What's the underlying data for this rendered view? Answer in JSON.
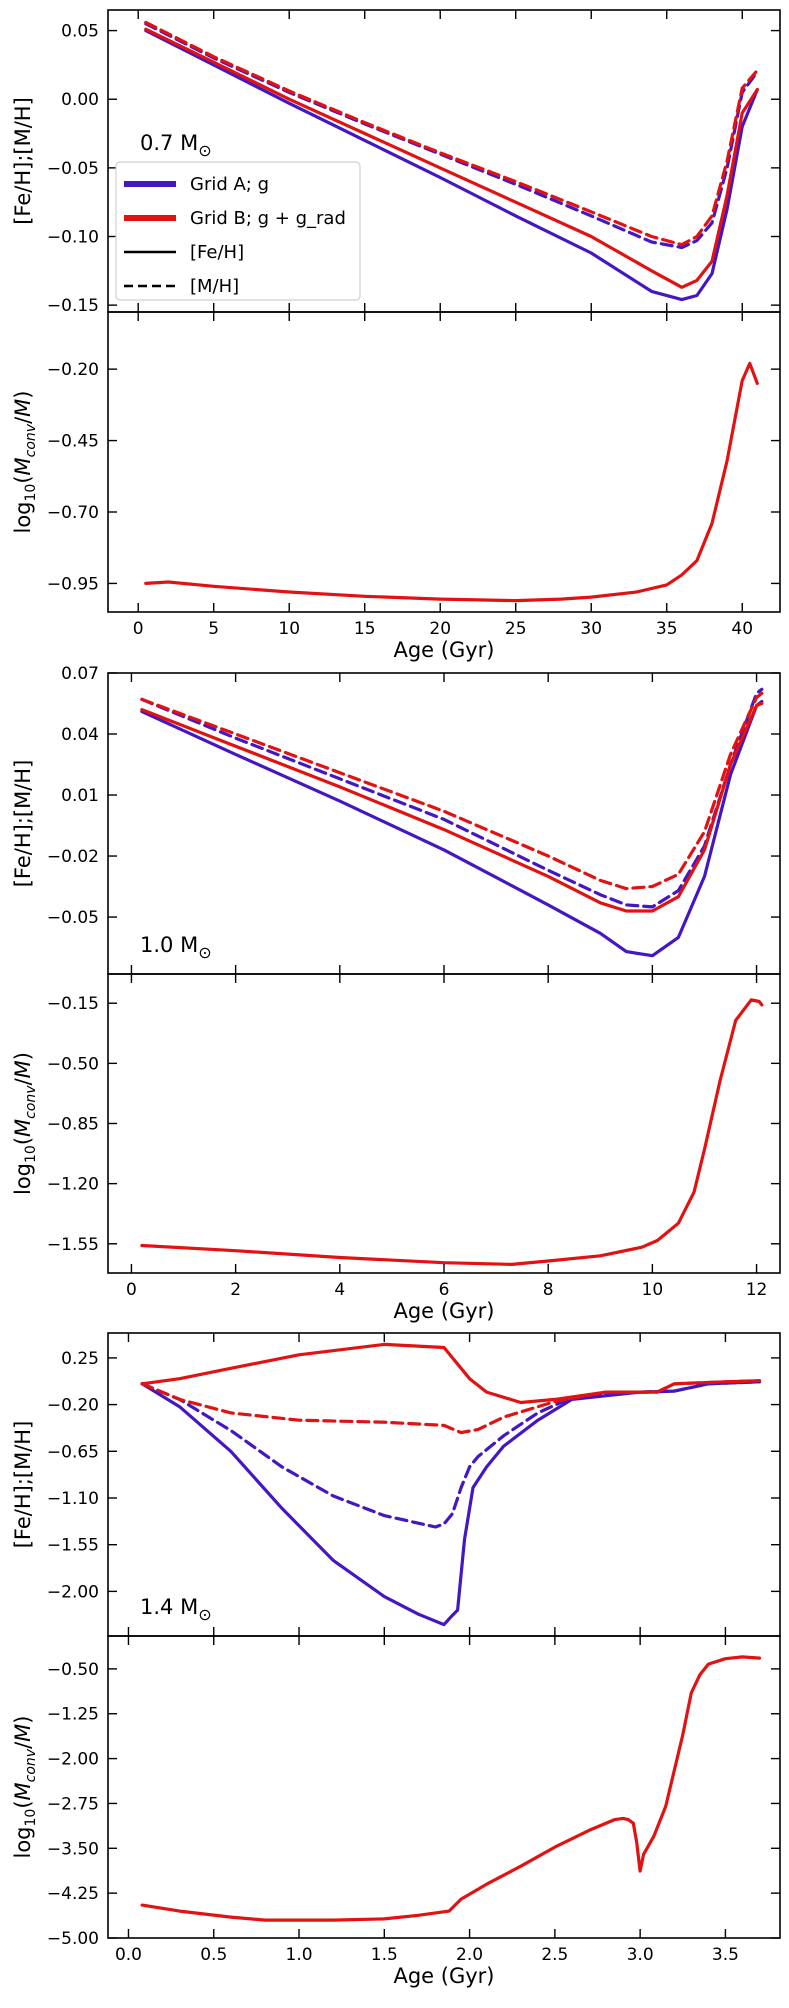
{
  "figure": {
    "colors": {
      "grid_a": "#4417c4",
      "grid_b": "#e21212",
      "legend_black": "#000000"
    }
  },
  "chart_data": [
    {
      "type": "line",
      "id": "p07_top",
      "mass_label": "0.7 M",
      "mass_symbol": "⊙",
      "ylabel": "[Fe/H];[M/H]",
      "xlabel": "",
      "xlim": [
        -2,
        42.5
      ],
      "ylim": [
        -0.155,
        0.065
      ],
      "yticks": [
        0.05,
        0.0,
        -0.05,
        -0.1,
        -0.15
      ],
      "ytick_labels": [
        "0.05",
        "0.00",
        "−0.05",
        "−0.10",
        "−0.15"
      ],
      "xticks": [
        0,
        5,
        10,
        15,
        20,
        25,
        30,
        35,
        40
      ],
      "legend": {
        "placement": "upper-left",
        "items": [
          {
            "label": "Grid A; g",
            "style": "grid_a"
          },
          {
            "label": "Grid B; g + g_rad",
            "style": "grid_b"
          },
          {
            "label": "[Fe/H]",
            "style": "solid"
          },
          {
            "label": "[M/H]",
            "style": "dashed"
          }
        ]
      },
      "series": [
        {
          "name": "Grid A [Fe/H]",
          "grid": "A",
          "dash": false,
          "x": [
            0.5,
            5,
            10,
            15,
            20,
            25,
            30,
            34,
            36,
            37,
            38,
            39,
            40,
            41
          ],
          "y": [
            0.05,
            0.025,
            -0.003,
            -0.03,
            -0.057,
            -0.085,
            -0.112,
            -0.14,
            -0.146,
            -0.143,
            -0.127,
            -0.08,
            -0.02,
            0.007
          ]
        },
        {
          "name": "Grid A [M/H]",
          "grid": "A",
          "dash": true,
          "x": [
            0.5,
            5,
            10,
            15,
            20,
            25,
            30,
            34,
            36,
            37,
            38,
            39,
            40,
            41
          ],
          "y": [
            0.055,
            0.03,
            0.005,
            -0.018,
            -0.04,
            -0.062,
            -0.085,
            -0.104,
            -0.108,
            -0.103,
            -0.09,
            -0.05,
            0.005,
            0.02
          ]
        },
        {
          "name": "Grid B [Fe/H]",
          "grid": "B",
          "dash": false,
          "x": [
            0.5,
            5,
            10,
            15,
            20,
            25,
            30,
            34,
            36,
            37,
            38,
            39,
            40,
            41
          ],
          "y": [
            0.051,
            0.027,
            0.0,
            -0.025,
            -0.05,
            -0.075,
            -0.1,
            -0.125,
            -0.137,
            -0.132,
            -0.118,
            -0.07,
            -0.01,
            0.007
          ]
        },
        {
          "name": "Grid B [M/H]",
          "grid": "B",
          "dash": true,
          "x": [
            0.5,
            5,
            10,
            15,
            20,
            25,
            30,
            34,
            36,
            37,
            38,
            39,
            40,
            41
          ],
          "y": [
            0.056,
            0.031,
            0.006,
            -0.017,
            -0.039,
            -0.06,
            -0.082,
            -0.1,
            -0.106,
            -0.1,
            -0.085,
            -0.045,
            0.008,
            0.021
          ]
        }
      ]
    },
    {
      "type": "line",
      "id": "p07_bottom",
      "ylabel": "log10(Mconv/M)",
      "xlabel": "Age (Gyr)",
      "xlim": [
        -2,
        42.5
      ],
      "ylim": [
        -1.05,
        0.0
      ],
      "yticks": [
        -0.2,
        -0.45,
        -0.7,
        -0.95
      ],
      "ytick_labels": [
        "−0.20",
        "−0.45",
        "−0.70",
        "−0.95"
      ],
      "xticks": [
        0,
        5,
        10,
        15,
        20,
        25,
        30,
        35,
        40
      ],
      "xtick_labels": [
        "0",
        "5",
        "10",
        "15",
        "20",
        "25",
        "30",
        "35",
        "40"
      ],
      "series": [
        {
          "name": "Grid B Mconv",
          "grid": "B",
          "dash": false,
          "x": [
            0.5,
            2,
            5,
            10,
            15,
            20,
            25,
            28,
            30,
            33,
            35,
            36,
            37,
            38,
            39,
            40,
            40.5,
            41
          ],
          "y": [
            -0.95,
            -0.945,
            -0.96,
            -0.98,
            -0.995,
            -1.005,
            -1.01,
            -1.005,
            -0.998,
            -0.98,
            -0.955,
            -0.92,
            -0.87,
            -0.74,
            -0.52,
            -0.24,
            -0.18,
            -0.25
          ]
        }
      ]
    },
    {
      "type": "line",
      "id": "p10_top",
      "mass_label": "1.0 M",
      "mass_symbol": "⊙",
      "ylabel": "[Fe/H];[M/H]",
      "xlabel": "",
      "xlim": [
        -0.45,
        12.45
      ],
      "ylim": [
        -0.078,
        0.07
      ],
      "yticks": [
        0.07,
        0.04,
        0.01,
        -0.02,
        -0.05
      ],
      "ytick_labels": [
        "0.07",
        "0.04",
        "0.01",
        "−0.02",
        "−0.05"
      ],
      "xticks": [
        0,
        2,
        4,
        6,
        8,
        10,
        12
      ],
      "series": [
        {
          "name": "Grid A [Fe/H]",
          "grid": "A",
          "dash": false,
          "x": [
            0.2,
            2,
            4,
            6,
            8,
            9,
            9.5,
            10,
            10.5,
            11,
            11.5,
            12,
            12.1
          ],
          "y": [
            0.051,
            0.03,
            0.007,
            -0.017,
            -0.044,
            -0.058,
            -0.067,
            -0.069,
            -0.06,
            -0.03,
            0.02,
            0.054,
            0.056
          ]
        },
        {
          "name": "Grid A [M/H]",
          "grid": "A",
          "dash": true,
          "x": [
            0.2,
            2,
            4,
            6,
            8,
            9,
            9.5,
            10,
            10.5,
            11,
            11.5,
            12,
            12.1
          ],
          "y": [
            0.057,
            0.038,
            0.018,
            -0.002,
            -0.027,
            -0.039,
            -0.044,
            -0.045,
            -0.037,
            -0.015,
            0.025,
            0.06,
            0.062
          ]
        },
        {
          "name": "Grid B [Fe/H]",
          "grid": "B",
          "dash": false,
          "x": [
            0.2,
            2,
            4,
            6,
            8,
            9,
            9.5,
            10,
            10.5,
            11,
            11.5,
            12,
            12.1
          ],
          "y": [
            0.052,
            0.034,
            0.014,
            -0.007,
            -0.03,
            -0.043,
            -0.047,
            -0.047,
            -0.04,
            -0.017,
            0.025,
            0.054,
            0.055
          ]
        },
        {
          "name": "Grid B [M/H]",
          "grid": "B",
          "dash": true,
          "x": [
            0.2,
            2,
            4,
            6,
            8,
            9,
            9.5,
            10,
            10.5,
            11,
            11.5,
            12,
            12.1
          ],
          "y": [
            0.057,
            0.04,
            0.021,
            0.002,
            -0.02,
            -0.032,
            -0.036,
            -0.035,
            -0.029,
            -0.008,
            0.03,
            0.058,
            0.06
          ]
        }
      ]
    },
    {
      "type": "line",
      "id": "p10_bottom",
      "ylabel": "log10(Mconv/M)",
      "xlabel": "Age (Gyr)",
      "xlim": [
        -0.45,
        12.45
      ],
      "ylim": [
        -1.72,
        0.02
      ],
      "yticks": [
        -0.15,
        -0.5,
        -0.85,
        -1.2,
        -1.55
      ],
      "ytick_labels": [
        "−0.15",
        "−0.50",
        "−0.85",
        "−1.20",
        "−1.55"
      ],
      "xticks": [
        0,
        2,
        4,
        6,
        8,
        10,
        12
      ],
      "xtick_labels": [
        "0",
        "2",
        "4",
        "6",
        "8",
        "10",
        "12"
      ],
      "series": [
        {
          "name": "Grid B Mconv",
          "grid": "B",
          "dash": false,
          "x": [
            0.2,
            2,
            4,
            6,
            7.3,
            8,
            9,
            9.8,
            10.1,
            10.5,
            10.8,
            11.0,
            11.3,
            11.6,
            11.9,
            12.05,
            12.1
          ],
          "y": [
            -1.56,
            -1.59,
            -1.63,
            -1.66,
            -1.67,
            -1.65,
            -1.62,
            -1.57,
            -1.53,
            -1.43,
            -1.25,
            -1.0,
            -0.6,
            -0.25,
            -0.13,
            -0.14,
            -0.16
          ]
        }
      ]
    },
    {
      "type": "line",
      "id": "p14_top",
      "mass_label": "1.4 M",
      "mass_symbol": "⊙",
      "ylabel": "[Fe/H];[M/H]",
      "xlabel": "",
      "xlim": [
        -0.12,
        3.82
      ],
      "ylim": [
        -2.43,
        0.49
      ],
      "yticks": [
        0.25,
        -0.2,
        -0.65,
        -1.1,
        -1.55,
        -2.0
      ],
      "ytick_labels": [
        "0.25",
        "−0.20",
        "−0.65",
        "−1.10",
        "−1.55",
        "−2.00"
      ],
      "xticks": [
        0.0,
        0.5,
        1.0,
        1.5,
        2.0,
        2.5,
        3.0,
        3.5
      ],
      "series": [
        {
          "name": "Grid A [Fe/H]",
          "grid": "A",
          "dash": false,
          "x": [
            0.08,
            0.3,
            0.6,
            0.9,
            1.2,
            1.5,
            1.7,
            1.85,
            1.9,
            1.93,
            1.97,
            2.02,
            2.1,
            2.2,
            2.4,
            2.6,
            3.0,
            3.2,
            3.4,
            3.7
          ],
          "y": [
            0.0,
            -0.22,
            -0.65,
            -1.2,
            -1.7,
            -2.05,
            -2.22,
            -2.32,
            -2.23,
            -2.18,
            -1.5,
            -1.0,
            -0.8,
            -0.6,
            -0.35,
            -0.15,
            -0.08,
            -0.07,
            0.0,
            0.02
          ]
        },
        {
          "name": "Grid A [M/H]",
          "grid": "A",
          "dash": true,
          "x": [
            0.08,
            0.3,
            0.6,
            0.9,
            1.2,
            1.5,
            1.8,
            1.85,
            1.9,
            1.95,
            2.0,
            2.05,
            2.2,
            2.4,
            2.6,
            3.0,
            3.2,
            3.4,
            3.7
          ],
          "y": [
            0.0,
            -0.15,
            -0.45,
            -0.8,
            -1.08,
            -1.27,
            -1.38,
            -1.35,
            -1.25,
            -1.0,
            -0.8,
            -0.7,
            -0.5,
            -0.28,
            -0.13,
            -0.08,
            -0.07,
            0.0,
            0.02
          ]
        },
        {
          "name": "Grid B [Fe/H]",
          "grid": "B",
          "dash": false,
          "x": [
            0.08,
            0.3,
            0.6,
            1.0,
            1.5,
            1.85,
            1.9,
            2.0,
            2.1,
            2.3,
            2.5,
            2.8,
            3.0,
            3.1,
            3.2,
            3.5,
            3.7
          ],
          "y": [
            0.0,
            0.05,
            0.15,
            0.28,
            0.38,
            0.35,
            0.25,
            0.05,
            -0.08,
            -0.18,
            -0.15,
            -0.08,
            -0.08,
            -0.08,
            0.0,
            0.02,
            0.03
          ]
        },
        {
          "name": "Grid B [M/H]",
          "grid": "B",
          "dash": true,
          "x": [
            0.08,
            0.3,
            0.6,
            1.0,
            1.5,
            1.85,
            1.95,
            2.05,
            2.2,
            2.5,
            2.8,
            3.0,
            3.1,
            3.2,
            3.5,
            3.7
          ],
          "y": [
            0.0,
            -0.15,
            -0.28,
            -0.35,
            -0.37,
            -0.4,
            -0.47,
            -0.44,
            -0.32,
            -0.17,
            -0.08,
            -0.08,
            -0.08,
            0.0,
            0.02,
            0.03
          ]
        }
      ]
    },
    {
      "type": "line",
      "id": "p14_bottom",
      "ylabel": "log10(Mconv/M)",
      "xlabel": "Age (Gyr)",
      "xlim": [
        -0.12,
        3.82
      ],
      "ylim": [
        -5.0,
        0.05
      ],
      "yticks": [
        -0.5,
        -1.25,
        -2.0,
        -2.75,
        -3.5,
        -4.25,
        -5.0
      ],
      "ytick_labels": [
        "−0.50",
        "−1.25",
        "−2.00",
        "−2.75",
        "−3.50",
        "−4.25",
        "−5.00"
      ],
      "xticks": [
        0.0,
        0.5,
        1.0,
        1.5,
        2.0,
        2.5,
        3.0,
        3.5
      ],
      "xtick_labels": [
        "0.0",
        "0.5",
        "1.0",
        "1.5",
        "2.0",
        "2.5",
        "3.0",
        "3.5"
      ],
      "series": [
        {
          "name": "Grid B Mconv",
          "grid": "B",
          "dash": false,
          "x": [
            0.08,
            0.3,
            0.6,
            0.8,
            1.0,
            1.2,
            1.5,
            1.7,
            1.88,
            1.95,
            2.1,
            2.3,
            2.5,
            2.7,
            2.85,
            2.9,
            2.93,
            2.96,
            2.98,
            3.0,
            3.02,
            3.08,
            3.15,
            3.25,
            3.3,
            3.35,
            3.4,
            3.5,
            3.6,
            3.7
          ],
          "y": [
            -4.45,
            -4.55,
            -4.65,
            -4.7,
            -4.7,
            -4.7,
            -4.68,
            -4.62,
            -4.55,
            -4.35,
            -4.1,
            -3.8,
            -3.48,
            -3.2,
            -3.02,
            -3.0,
            -3.02,
            -3.08,
            -3.4,
            -3.88,
            -3.6,
            -3.3,
            -2.8,
            -1.6,
            -0.9,
            -0.6,
            -0.42,
            -0.33,
            -0.3,
            -0.32
          ]
        }
      ]
    }
  ]
}
